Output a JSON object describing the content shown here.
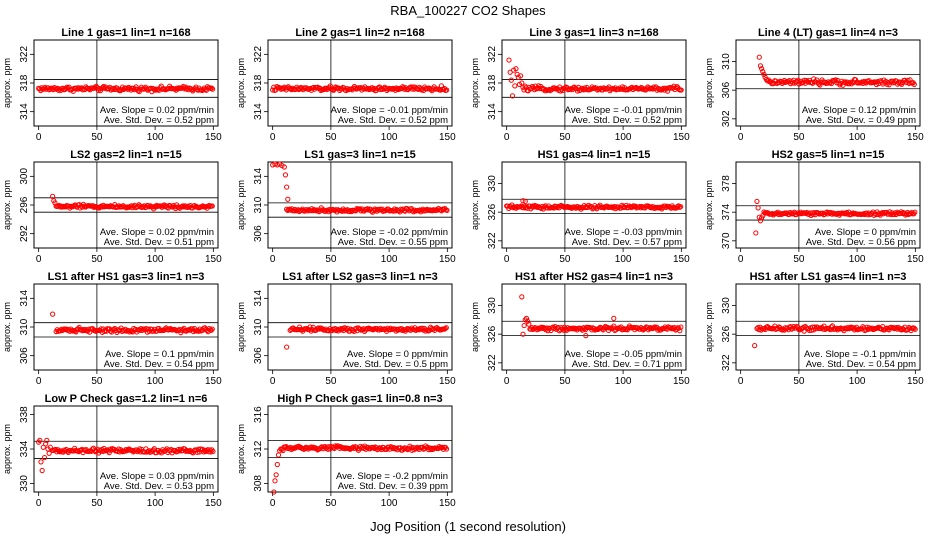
{
  "title": "RBA_100227  CO2 Shapes",
  "xlabel": "Jog Position (1 second resolution)",
  "ylabel": "approx. ppm",
  "stats_labels": {
    "slope": "Ave. Slope =",
    "sd": "Ave. Std. Dev. =",
    "slope_unit": "ppm/min",
    "sd_unit": "ppm"
  },
  "colors": {
    "points": "#ff0000",
    "axes": "#000000",
    "background": "#ffffff"
  },
  "chart_data": [
    {
      "type": "scatter",
      "title": "Line 1 gas=1 lin=1 n=168",
      "ylim": [
        312,
        324
      ],
      "yticks": [
        314,
        318,
        322
      ],
      "xlim": [
        -4,
        154
      ],
      "xticks": [
        0,
        50,
        100,
        150
      ],
      "hlines": [
        318.5,
        316.0
      ],
      "vline": 50,
      "slope": "0.02",
      "sd": "0.52",
      "segments": [
        {
          "x0": 0,
          "x1": 150,
          "level": 317.2,
          "noise": 0.3
        }
      ],
      "outliers": []
    },
    {
      "type": "scatter",
      "title": "Line 2 gas=1 lin=2 n=168",
      "ylim": [
        312,
        324
      ],
      "yticks": [
        314,
        318,
        322
      ],
      "xlim": [
        -4,
        154
      ],
      "xticks": [
        0,
        50,
        100,
        150
      ],
      "hlines": [
        318.5,
        316.0
      ],
      "vline": 50,
      "slope": "-0.01",
      "sd": "0.52",
      "segments": [
        {
          "x0": 0,
          "x1": 150,
          "level": 317.2,
          "noise": 0.3
        }
      ],
      "outliers": []
    },
    {
      "type": "scatter",
      "title": "Line 3 gas=1 lin=3 n=168",
      "ylim": [
        312,
        324
      ],
      "yticks": [
        314,
        318,
        322
      ],
      "xlim": [
        -4,
        154
      ],
      "xticks": [
        0,
        50,
        100,
        150
      ],
      "hlines": [
        318.5,
        316.0
      ],
      "vline": 50,
      "slope": "-0.01",
      "sd": "0.52",
      "segments": [
        {
          "x0": 14,
          "x1": 150,
          "level": 317.2,
          "noise": 0.3
        }
      ],
      "outliers": [
        [
          2,
          321.2
        ],
        [
          3,
          319.5
        ],
        [
          4,
          318.4
        ],
        [
          5,
          316.2
        ],
        [
          6,
          319.8
        ],
        [
          7,
          317.6
        ],
        [
          8,
          320.0
        ],
        [
          9,
          319.2
        ],
        [
          10,
          318.8
        ],
        [
          11,
          317.8
        ],
        [
          12,
          319.0
        ],
        [
          13,
          318.0
        ]
      ]
    },
    {
      "type": "scatter",
      "title": "Line 4 (LT) gas=1 lin=4 n=3",
      "ylim": [
        301,
        313
      ],
      "yticks": [
        302,
        306,
        310
      ],
      "xlim": [
        -4,
        154
      ],
      "xticks": [
        0,
        50,
        100,
        150
      ],
      "hlines": [
        308.2,
        306.2
      ],
      "vline": 50,
      "slope": "0.12",
      "sd": "0.49",
      "segments": [
        {
          "x0": 24,
          "x1": 150,
          "level": 307.1,
          "noise": 0.35
        }
      ],
      "outliers": [
        [
          16,
          310.6
        ],
        [
          17,
          309.4
        ],
        [
          18,
          309.0
        ],
        [
          19,
          308.6
        ],
        [
          20,
          308.2
        ],
        [
          21,
          307.8
        ],
        [
          22,
          307.5
        ],
        [
          23,
          307.3
        ]
      ]
    },
    {
      "type": "scatter",
      "title": "LS2 gas=2 lin=1 n=15",
      "ylim": [
        290,
        302
      ],
      "yticks": [
        292,
        296,
        300
      ],
      "xlim": [
        -4,
        154
      ],
      "xticks": [
        0,
        50,
        100,
        150
      ],
      "hlines": [
        297.0,
        295.0
      ],
      "vline": 50,
      "slope": "0.02",
      "sd": "0.51",
      "segments": [
        {
          "x0": 15,
          "x1": 150,
          "level": 295.8,
          "noise": 0.25
        }
      ],
      "outliers": [
        [
          12,
          297.2
        ],
        [
          13,
          296.6
        ],
        [
          14,
          296.3
        ]
      ]
    },
    {
      "type": "scatter",
      "title": "LS1 gas=3 lin=1 n=15",
      "ylim": [
        304,
        316
      ],
      "yticks": [
        306,
        310,
        314
      ],
      "xlim": [
        -4,
        154
      ],
      "xticks": [
        0,
        50,
        100,
        150
      ],
      "hlines": [
        310.3,
        308.3
      ],
      "vline": 50,
      "slope": "-0.02",
      "sd": "0.55",
      "segments": [
        {
          "x0": 12,
          "x1": 150,
          "level": 309.3,
          "noise": 0.25
        }
      ],
      "outliers": [
        [
          0,
          315.6
        ],
        [
          2,
          315.7
        ],
        [
          4,
          315.6
        ],
        [
          6,
          315.7
        ],
        [
          8,
          315.5
        ],
        [
          10,
          315.3
        ],
        [
          11,
          314.2
        ],
        [
          12,
          312.5
        ],
        [
          13,
          310.8
        ]
      ]
    },
    {
      "type": "scatter",
      "title": "HS1 gas=4 lin=1 n=15",
      "ylim": [
        321,
        333
      ],
      "yticks": [
        322,
        326,
        330
      ],
      "xlim": [
        -4,
        154
      ],
      "xticks": [
        0,
        50,
        100,
        150
      ],
      "hlines": [
        327.8,
        325.8
      ],
      "vline": 50,
      "slope": "-0.03",
      "sd": "0.57",
      "segments": [
        {
          "x0": 0,
          "x1": 150,
          "level": 326.7,
          "noise": 0.25
        }
      ],
      "outliers": [
        [
          14,
          327.6
        ],
        [
          16,
          327.5
        ]
      ]
    },
    {
      "type": "scatter",
      "title": "HS2 gas=5 lin=1 n=15",
      "ylim": [
        369,
        381
      ],
      "yticks": [
        370,
        374,
        378
      ],
      "xlim": [
        -4,
        154
      ],
      "xticks": [
        0,
        50,
        100,
        150
      ],
      "hlines": [
        374.9,
        372.9
      ],
      "vline": 50,
      "slope": "0",
      "sd": "0.56",
      "segments": [
        {
          "x0": 20,
          "x1": 150,
          "level": 373.8,
          "noise": 0.25
        }
      ],
      "outliers": [
        [
          13,
          371.1
        ],
        [
          14,
          375.5
        ],
        [
          15,
          374.6
        ],
        [
          16,
          373.3
        ],
        [
          17,
          372.8
        ],
        [
          18,
          373.2
        ],
        [
          19,
          373.5
        ]
      ]
    },
    {
      "type": "scatter",
      "title": "LS1 after HS1 gas=3 lin=1 n=3",
      "ylim": [
        304,
        316
      ],
      "yticks": [
        306,
        310,
        314
      ],
      "xlim": [
        -4,
        154
      ],
      "xticks": [
        0,
        50,
        100,
        150
      ],
      "hlines": [
        310.6,
        308.6
      ],
      "vline": 50,
      "slope": "0.1",
      "sd": "0.54",
      "segments": [
        {
          "x0": 15,
          "x1": 150,
          "level": 309.6,
          "noise": 0.3
        }
      ],
      "outliers": [
        [
          12,
          311.8
        ]
      ]
    },
    {
      "type": "scatter",
      "title": "LS1 after LS2 gas=3 lin=1 n=3",
      "ylim": [
        304,
        316
      ],
      "yticks": [
        306,
        310,
        314
      ],
      "xlim": [
        -4,
        154
      ],
      "xticks": [
        0,
        50,
        100,
        150
      ],
      "hlines": [
        310.6,
        308.6
      ],
      "vline": 50,
      "slope": "0",
      "sd": "0.5",
      "segments": [
        {
          "x0": 15,
          "x1": 150,
          "level": 309.7,
          "noise": 0.3
        }
      ],
      "outliers": [
        [
          12,
          307.2
        ]
      ]
    },
    {
      "type": "scatter",
      "title": "HS1 after HS2 gas=4 lin=1 n=3",
      "ylim": [
        321,
        333
      ],
      "yticks": [
        322,
        326,
        330
      ],
      "xlim": [
        -4,
        154
      ],
      "xticks": [
        0,
        50,
        100,
        150
      ],
      "hlines": [
        327.8,
        325.8
      ],
      "vline": 50,
      "slope": "-0.05",
      "sd": "0.71",
      "segments": [
        {
          "x0": 20,
          "x1": 150,
          "level": 326.8,
          "noise": 0.3
        }
      ],
      "outliers": [
        [
          13,
          331.2
        ],
        [
          14,
          326.0
        ],
        [
          15,
          327.2
        ],
        [
          16,
          328.0
        ],
        [
          17,
          328.2
        ],
        [
          18,
          327.8
        ],
        [
          19,
          327.4
        ],
        [
          68,
          325.8
        ],
        [
          92,
          328.2
        ]
      ]
    },
    {
      "type": "scatter",
      "title": "HS1 after LS1 gas=4 lin=1 n=3",
      "ylim": [
        321,
        333
      ],
      "yticks": [
        322,
        326,
        330
      ],
      "xlim": [
        -4,
        154
      ],
      "xticks": [
        0,
        50,
        100,
        150
      ],
      "hlines": [
        327.8,
        325.8
      ],
      "vline": 50,
      "slope": "-0.1",
      "sd": "0.54",
      "segments": [
        {
          "x0": 14,
          "x1": 150,
          "level": 326.8,
          "noise": 0.3
        }
      ],
      "outliers": [
        [
          12,
          324.4
        ]
      ]
    },
    {
      "type": "scatter",
      "title": "Low P Check gas=1.2 lin=1 n=6",
      "ylim": [
        329,
        339
      ],
      "yticks": [
        330,
        334,
        338
      ],
      "xlim": [
        -4,
        154
      ],
      "xticks": [
        0,
        50,
        100,
        150
      ],
      "hlines": [
        334.9,
        332.9
      ],
      "vline": 50,
      "slope": "0.03",
      "sd": "0.53",
      "segments": [
        {
          "x0": 12,
          "x1": 150,
          "level": 333.8,
          "noise": 0.25
        }
      ],
      "outliers": [
        [
          0,
          334.8
        ],
        [
          1,
          335.0
        ],
        [
          2,
          332.5
        ],
        [
          3,
          331.5
        ],
        [
          4,
          334.2
        ],
        [
          5,
          333.0
        ],
        [
          6,
          334.6
        ],
        [
          7,
          335.0
        ],
        [
          8,
          334.0
        ],
        [
          9,
          333.5
        ],
        [
          10,
          334.2
        ]
      ]
    },
    {
      "type": "scatter",
      "title": "High P Check gas=1 lin=0.8 n=3",
      "ylim": [
        307,
        317
      ],
      "yticks": [
        308,
        312,
        316
      ],
      "xlim": [
        -4,
        154
      ],
      "xticks": [
        0,
        50,
        100,
        150
      ],
      "hlines": [
        313.0,
        311.0
      ],
      "vline": 50,
      "slope": "-0.2",
      "sd": "0.39",
      "segments": [
        {
          "x0": 8,
          "x1": 150,
          "level": 312.1,
          "noise": 0.25
        }
      ],
      "outliers": [
        [
          1,
          307.0
        ],
        [
          2,
          308.3
        ],
        [
          3,
          309.0
        ],
        [
          4,
          310.2
        ],
        [
          5,
          311.3
        ],
        [
          6,
          311.8
        ],
        [
          7,
          312.0
        ]
      ]
    }
  ]
}
